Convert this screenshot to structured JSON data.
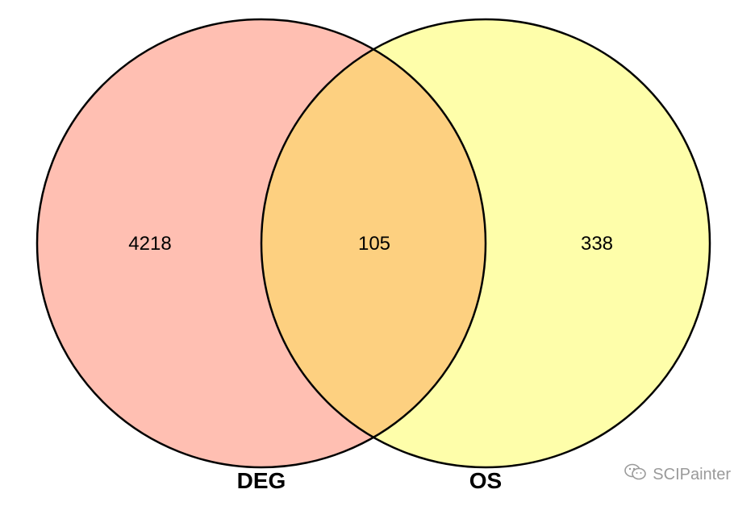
{
  "diagram": {
    "type": "venn",
    "sets": [
      {
        "name": "DEG",
        "color": "#ffbfb2"
      },
      {
        "name": "OS",
        "color": "#fefeaa"
      }
    ],
    "overlap_color": "#fdd080",
    "regions": {
      "deg_only": "4218",
      "intersection": "105",
      "os_only": "338"
    }
  },
  "watermark": {
    "icon": "wechat-icon",
    "text": "SCIPainter"
  }
}
